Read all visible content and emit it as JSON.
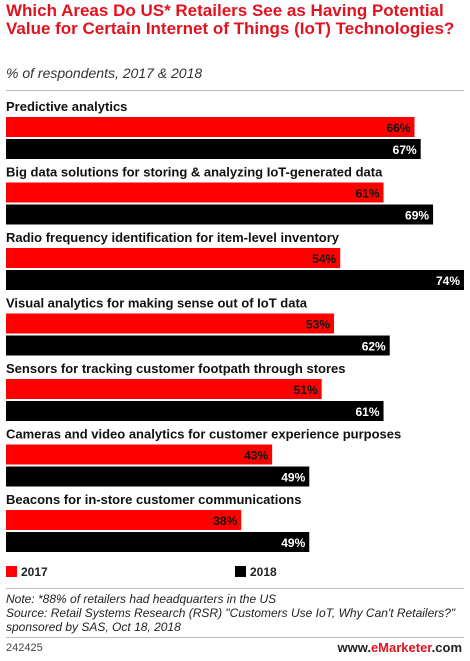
{
  "title": "Which Areas Do US* Retailers See as Having Potential Value for Certain Internet of Things (IoT) Technologies?",
  "subtitle": "% of respondents, 2017 & 2018",
  "chart_data": {
    "type": "bar",
    "orientation": "horizontal",
    "categories": [
      "Predictive analytics",
      "Big data solutions for storing & analyzing IoT-generated data",
      "Radio frequency identification for item-level inventory",
      "Visual analytics for making sense out of IoT data",
      "Sensors for tracking customer footpath through stores",
      "Cameras and video analytics for customer experience purposes",
      "Beacons for in-store customer communications"
    ],
    "series": [
      {
        "name": "2017",
        "color": "#ff0000",
        "values": [
          66,
          61,
          54,
          53,
          51,
          43,
          38
        ]
      },
      {
        "name": "2018",
        "color": "#000000",
        "values": [
          67,
          69,
          74,
          62,
          61,
          49,
          49
        ]
      }
    ],
    "value_suffix": "%",
    "xlim": [
      0,
      74
    ],
    "grid": false,
    "legend": "bottom-left"
  },
  "legend": {
    "s2017": "2017",
    "s2018": "2018"
  },
  "note_line1": "Note: *88% of retailers had headquarters in the US",
  "note_line2": "Source: Retail Systems Research (RSR) \"Customers Use IoT, Why Can't Retailers?\" sponsored by SAS, Oct 18, 2018",
  "footer_id": "242425",
  "brand_prefix": "www.",
  "brand_name": "eMarketer",
  "brand_suffix": ".com"
}
